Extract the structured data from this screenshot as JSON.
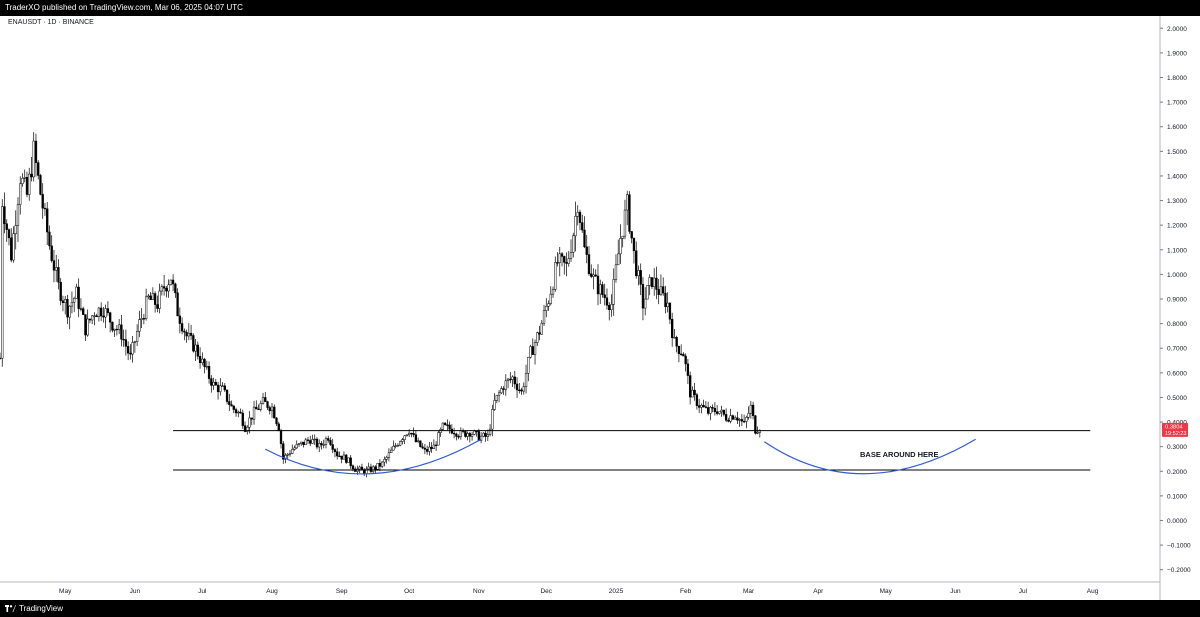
{
  "header": {
    "publish_line": "TraderXO published on TradingView.com, Mar 06, 2025 04:07 UTC"
  },
  "footer": {
    "brand": "TradingView"
  },
  "colors": {
    "background": "#ffffff",
    "candles": "#000000",
    "curve": "#2f5bd6",
    "price_tag": "#f23645"
  },
  "chart_data": {
    "type": "candlestick",
    "symbol_label": "ENAUSDT · 1D · BINANCE",
    "annotation": "BASE AROUND HERE",
    "price_axis": {
      "ticks": [
        "2.0000",
        "1.9000",
        "1.8000",
        "1.7000",
        "1.6000",
        "1.5000",
        "1.4000",
        "1.3000",
        "1.2000",
        "1.1000",
        "1.0000",
        "0.9000",
        "0.8000",
        "0.7000",
        "0.6000",
        "0.5000",
        "0.4000",
        "0.3000",
        "0.2000",
        "0.1000",
        "0.0000",
        "−0.1000",
        "−0.2000"
      ],
      "ylim": [
        -0.25,
        2.05
      ]
    },
    "time_axis": {
      "months": [
        "May",
        "Jun",
        "Jul",
        "Aug",
        "Sep",
        "Oct",
        "Nov",
        "Dec",
        "2025",
        "Feb",
        "Mar",
        "Apr",
        "May",
        "Jun",
        "Jul",
        "Aug"
      ],
      "xlim": [
        "2024-04-02",
        "2025-08-31"
      ]
    },
    "last_price": {
      "value": "0.3804",
      "countdown": "19:52:23"
    },
    "horizontal_levels": [
      0.365,
      0.205
    ],
    "level_ranges": [
      [
        "2024-06-18",
        "2025-07-31"
      ],
      [
        "2024-06-18",
        "2025-07-31"
      ]
    ],
    "curves": [
      {
        "points": [
          [
            "2024-07-29",
            0.29
          ],
          [
            "2024-09-14",
            0.19
          ],
          [
            "2024-11-02",
            0.33
          ]
        ]
      },
      {
        "points": [
          [
            "2025-03-08",
            0.32
          ],
          [
            "2025-04-22",
            0.19
          ],
          [
            "2025-06-10",
            0.33
          ]
        ]
      }
    ],
    "price_path": [
      [
        "2024-04-02",
        0.66
      ],
      [
        "2024-04-03",
        1.3
      ],
      [
        "2024-04-07",
        1.08
      ],
      [
        "2024-04-11",
        1.4
      ],
      [
        "2024-04-14",
        1.32
      ],
      [
        "2024-04-17",
        1.5
      ],
      [
        "2024-04-20",
        1.33
      ],
      [
        "2024-04-24",
        1.12
      ],
      [
        "2024-04-28",
        0.95
      ],
      [
        "2024-05-02",
        0.86
      ],
      [
        "2024-05-06",
        0.92
      ],
      [
        "2024-05-10",
        0.78
      ],
      [
        "2024-05-14",
        0.85
      ],
      [
        "2024-05-18",
        0.86
      ],
      [
        "2024-05-22",
        0.8
      ],
      [
        "2024-05-26",
        0.76
      ],
      [
        "2024-05-30",
        0.66
      ],
      [
        "2024-06-03",
        0.8
      ],
      [
        "2024-06-07",
        0.9
      ],
      [
        "2024-06-11",
        0.88
      ],
      [
        "2024-06-14",
        0.95
      ],
      [
        "2024-06-17",
        0.99
      ],
      [
        "2024-06-20",
        0.85
      ],
      [
        "2024-06-24",
        0.75
      ],
      [
        "2024-06-28",
        0.7
      ],
      [
        "2024-07-02",
        0.62
      ],
      [
        "2024-07-06",
        0.55
      ],
      [
        "2024-07-10",
        0.53
      ],
      [
        "2024-07-14",
        0.46
      ],
      [
        "2024-07-18",
        0.43
      ],
      [
        "2024-07-20",
        0.38
      ],
      [
        "2024-07-24",
        0.44
      ],
      [
        "2024-07-28",
        0.48
      ],
      [
        "2024-08-01",
        0.46
      ],
      [
        "2024-08-04",
        0.38
      ],
      [
        "2024-08-06",
        0.25
      ],
      [
        "2024-08-10",
        0.29
      ],
      [
        "2024-08-14",
        0.31
      ],
      [
        "2024-08-18",
        0.33
      ],
      [
        "2024-08-22",
        0.3
      ],
      [
        "2024-08-26",
        0.34
      ],
      [
        "2024-08-30",
        0.27
      ],
      [
        "2024-09-03",
        0.25
      ],
      [
        "2024-09-07",
        0.21
      ],
      [
        "2024-09-11",
        0.2
      ],
      [
        "2024-09-15",
        0.21
      ],
      [
        "2024-09-19",
        0.23
      ],
      [
        "2024-09-23",
        0.28
      ],
      [
        "2024-09-27",
        0.33
      ],
      [
        "2024-10-01",
        0.37
      ],
      [
        "2024-10-04",
        0.32
      ],
      [
        "2024-10-08",
        0.28
      ],
      [
        "2024-10-12",
        0.3
      ],
      [
        "2024-10-16",
        0.38
      ],
      [
        "2024-10-20",
        0.37
      ],
      [
        "2024-10-24",
        0.35
      ],
      [
        "2024-10-28",
        0.36
      ],
      [
        "2024-11-01",
        0.34
      ],
      [
        "2024-11-05",
        0.34
      ],
      [
        "2024-11-08",
        0.48
      ],
      [
        "2024-11-12",
        0.55
      ],
      [
        "2024-11-16",
        0.58
      ],
      [
        "2024-11-20",
        0.52
      ],
      [
        "2024-11-24",
        0.68
      ],
      [
        "2024-11-28",
        0.77
      ],
      [
        "2024-12-02",
        0.9
      ],
      [
        "2024-12-06",
        1.05
      ],
      [
        "2024-12-10",
        1.03
      ],
      [
        "2024-12-13",
        1.17
      ],
      [
        "2024-12-15",
        1.3
      ],
      [
        "2024-12-18",
        1.1
      ],
      [
        "2024-12-22",
        0.98
      ],
      [
        "2024-12-26",
        0.92
      ],
      [
        "2024-12-30",
        0.88
      ],
      [
        "2025-01-03",
        1.15
      ],
      [
        "2025-01-06",
        1.28
      ],
      [
        "2025-01-09",
        1.08
      ],
      [
        "2025-01-13",
        0.88
      ],
      [
        "2025-01-17",
        0.98
      ],
      [
        "2025-01-21",
        0.92
      ],
      [
        "2025-01-24",
        0.88
      ],
      [
        "2025-01-27",
        0.72
      ],
      [
        "2025-01-31",
        0.68
      ],
      [
        "2025-02-03",
        0.52
      ],
      [
        "2025-02-07",
        0.47
      ],
      [
        "2025-02-11",
        0.44
      ],
      [
        "2025-02-15",
        0.45
      ],
      [
        "2025-02-19",
        0.42
      ],
      [
        "2025-02-23",
        0.43
      ],
      [
        "2025-02-27",
        0.39
      ],
      [
        "2025-03-02",
        0.46
      ],
      [
        "2025-03-04",
        0.37
      ],
      [
        "2025-03-06",
        0.38
      ]
    ]
  }
}
